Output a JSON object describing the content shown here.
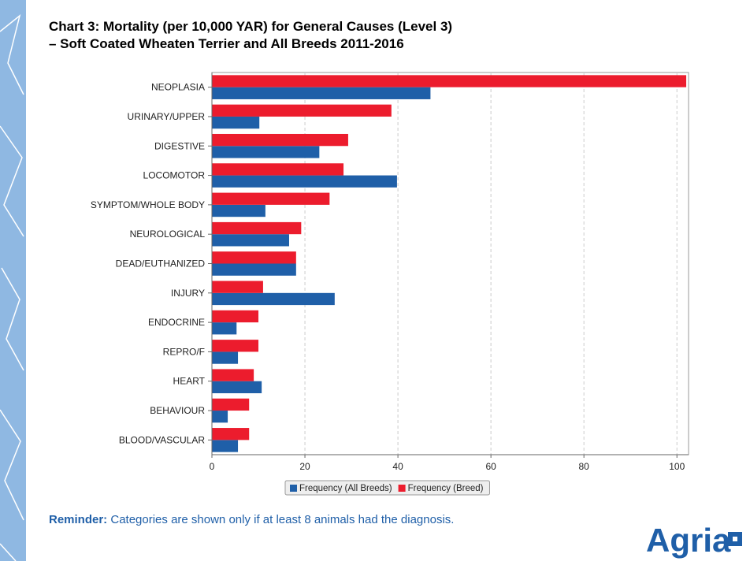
{
  "chart_data": {
    "type": "bar",
    "orientation": "horizontal",
    "title": "Chart 3: Mortality (per 10,000 YAR) for General Causes (Level 3)",
    "subtitle": "–  Soft Coated Wheaten Terrier and All Breeds 2011-2016",
    "categories": [
      "NEOPLASIA",
      "URINARY/UPPER",
      "DIGESTIVE",
      "LOCOMOTOR",
      "SYMPTOM/WHOLE BODY",
      "NEUROLOGICAL",
      "DEAD/EUTHANIZED",
      "INJURY",
      "ENDOCRINE",
      "REPRO/F",
      "HEART",
      "BEHAVIOUR",
      "BLOOD/VASCULAR"
    ],
    "series": [
      {
        "name": "Frequency (All Breeds)",
        "color": "#1f5fa8",
        "values": [
          47,
          10.2,
          23.1,
          39.8,
          11.5,
          16.6,
          18.1,
          26.4,
          5.3,
          5.6,
          10.7,
          3.4,
          5.6
        ]
      },
      {
        "name": "Frequency (Breed)",
        "color": "#ec1c2d",
        "values": [
          102,
          38.6,
          29.3,
          28.3,
          25.3,
          19.2,
          18.1,
          11,
          10,
          10,
          9,
          8,
          8
        ]
      }
    ],
    "xlim": [
      0,
      102.5
    ],
    "xticks": [
      0,
      20,
      40,
      60,
      80,
      100
    ],
    "grid": true,
    "legend": "bottom"
  },
  "footer": {
    "label": "Reminder:",
    "text": "Categories are shown only if at least 8 animals had the diagnosis."
  },
  "logo": "Agria"
}
